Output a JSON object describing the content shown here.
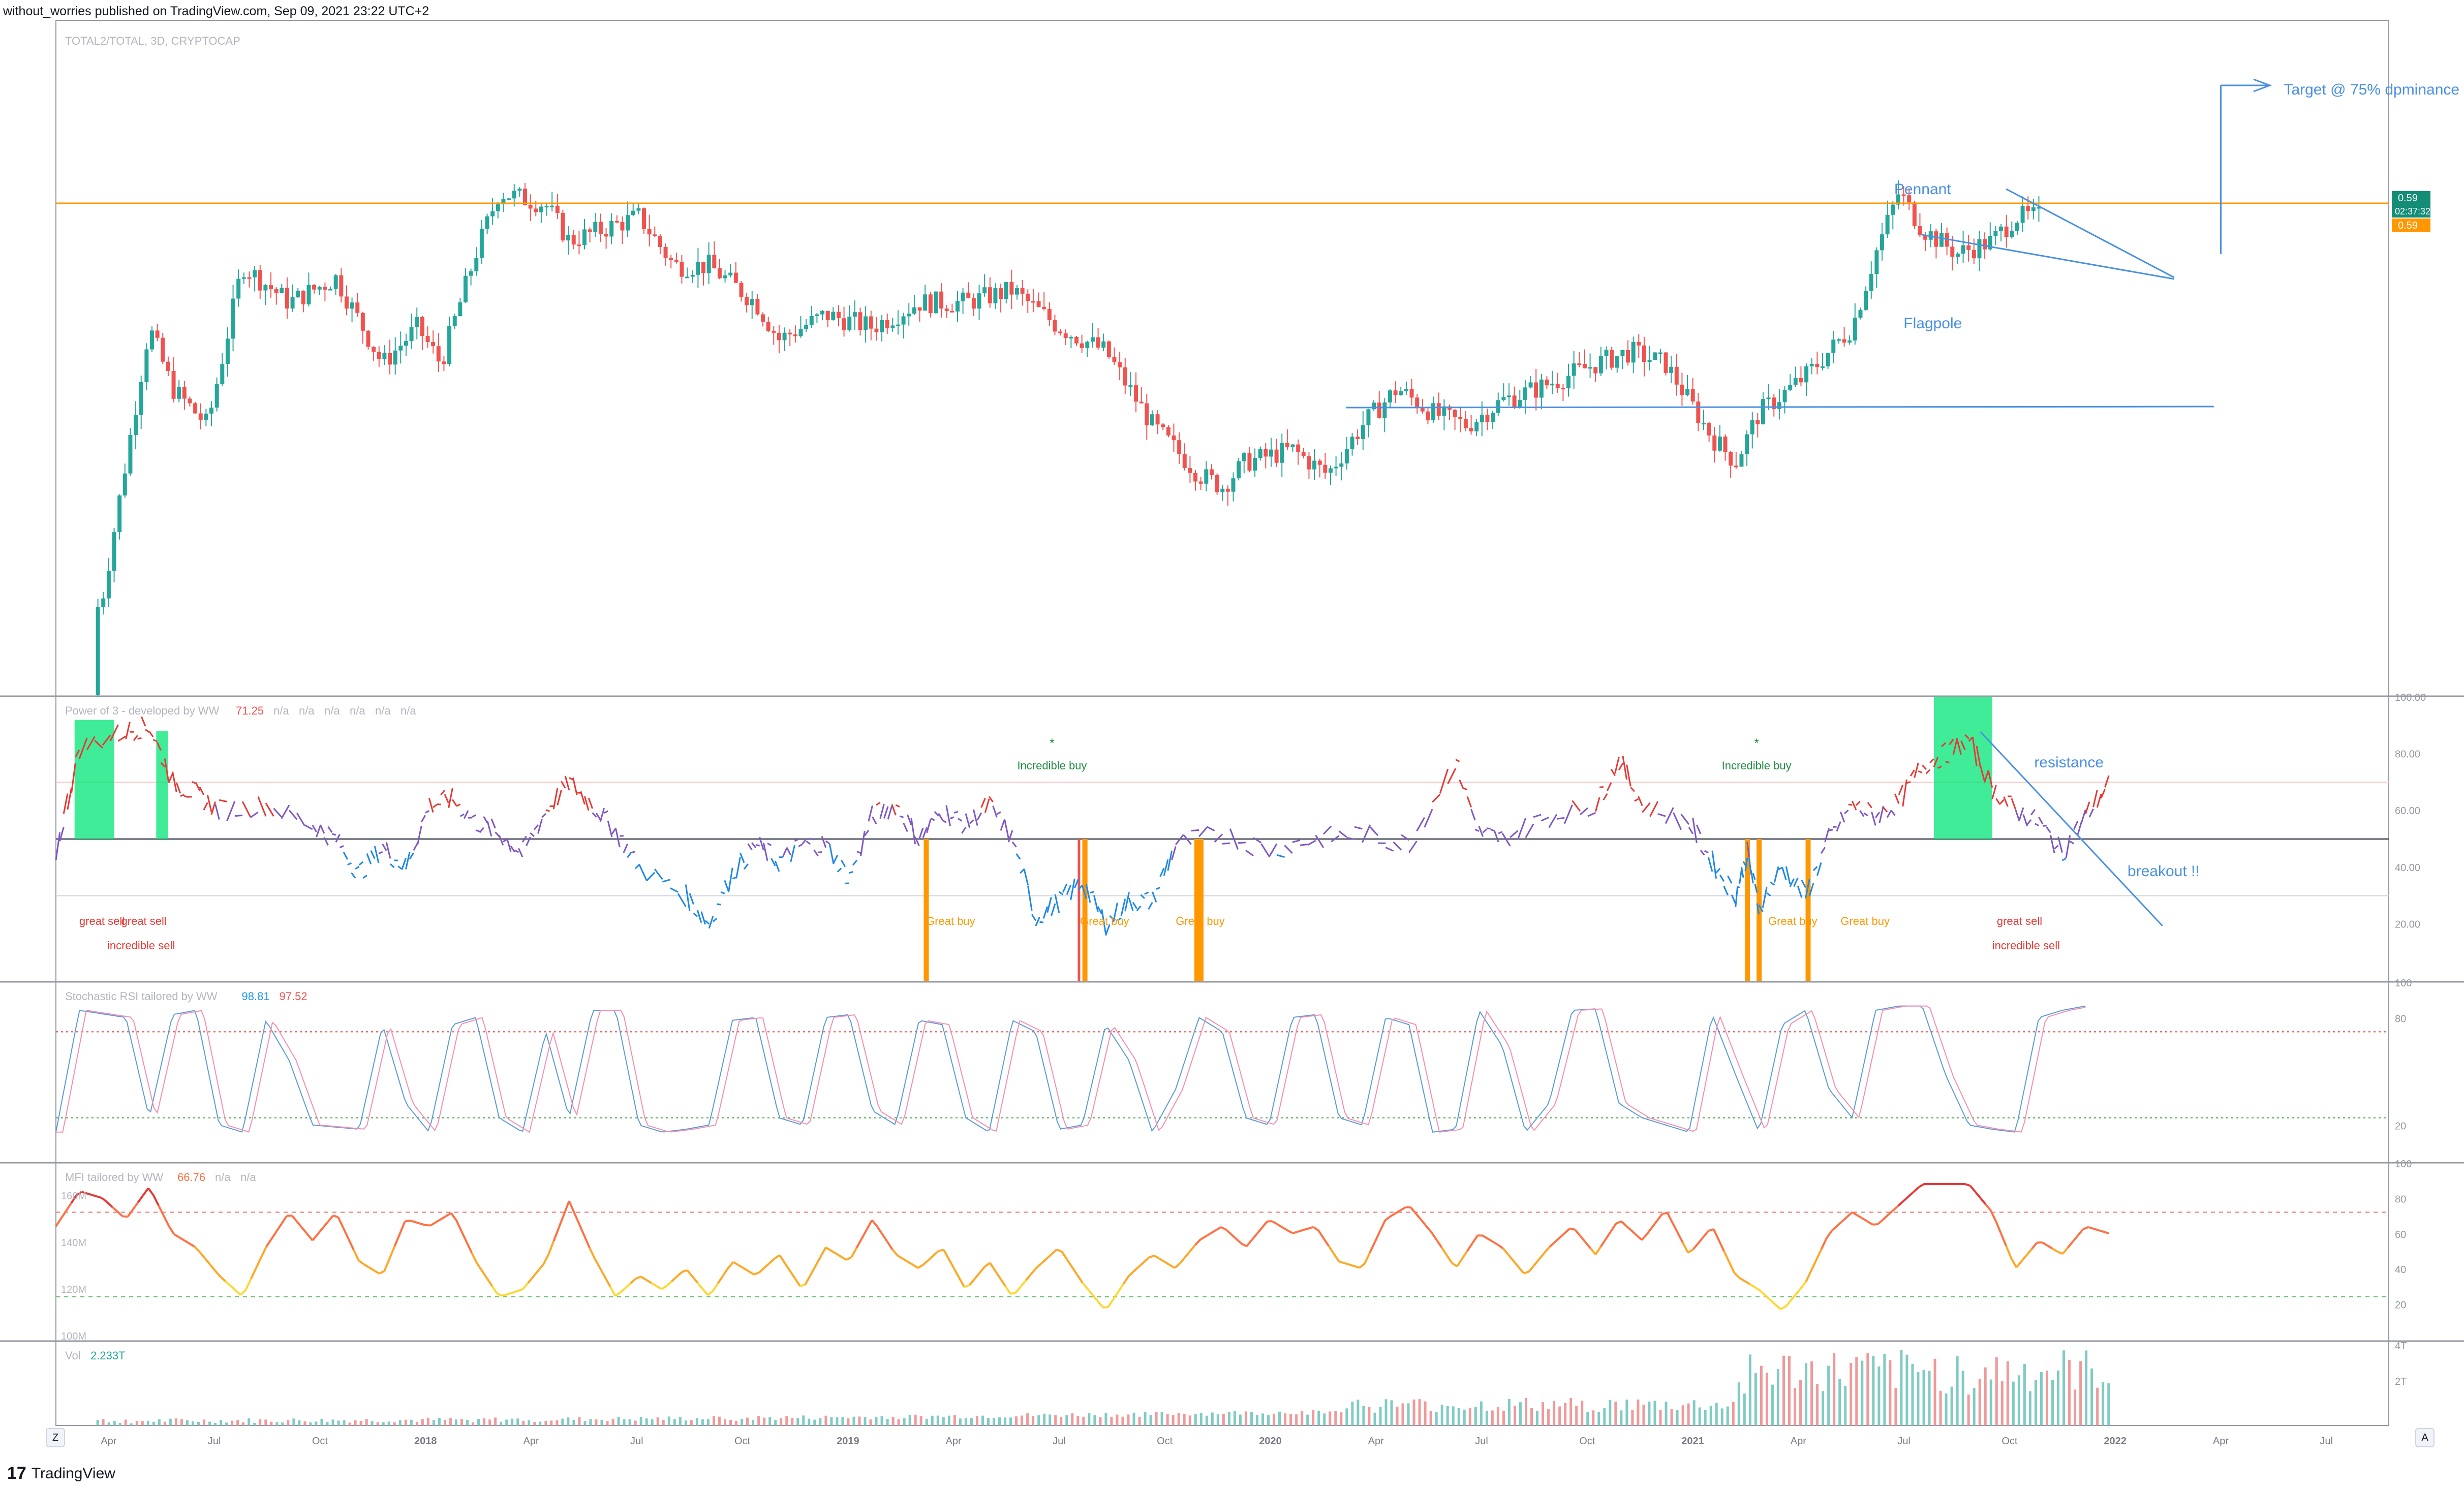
{
  "header": {
    "published": "without_worries published on TradingView.com, Sep 09, 2021 23:22 UTC+2"
  },
  "footer": {
    "brand": "TradingView",
    "brand_mark": "17"
  },
  "buttons": {
    "zoom": "Z",
    "auto": "A"
  },
  "colors": {
    "up": "#26a69a",
    "down": "#ef5350",
    "orange": "#ff9800",
    "blue": "#4a90e2",
    "grid": "#f0f3fa",
    "axis": "#787b86",
    "sep": "#9598a1",
    "green_text": "#1e8e3e",
    "red_text": "#e53935"
  },
  "chart_data": [
    {
      "type": "candlestick",
      "title": "TOTAL2/TOTAL, 3D, CRYPTOCAP",
      "x_labels": [
        "Apr",
        "Jul",
        "Oct",
        "2018",
        "Apr",
        "Jul",
        "Oct",
        "2019",
        "Apr",
        "Jul",
        "Oct",
        "2020",
        "Apr",
        "Jul",
        "Oct",
        "2021",
        "Apr",
        "Jul",
        "Oct",
        "2022",
        "Apr",
        "Jul"
      ],
      "price_label": "0.59",
      "countdown": "02:37:32",
      "last_label": "0.59",
      "ylim": [
        0.2,
        0.75
      ],
      "close_path": [
        [
          0.0,
          0.2
        ],
        [
          0.02,
          0.28
        ],
        [
          0.04,
          0.5
        ],
        [
          0.05,
          0.45
        ],
        [
          0.065,
          0.42
        ],
        [
          0.08,
          0.55
        ],
        [
          0.1,
          0.52
        ],
        [
          0.12,
          0.54
        ],
        [
          0.14,
          0.47
        ],
        [
          0.155,
          0.5
        ],
        [
          0.165,
          0.47
        ],
        [
          0.18,
          0.56
        ],
        [
          0.19,
          0.61
        ],
        [
          0.21,
          0.6
        ],
        [
          0.22,
          0.57
        ],
        [
          0.25,
          0.59
        ],
        [
          0.265,
          0.55
        ],
        [
          0.28,
          0.55
        ],
        [
          0.3,
          0.52
        ],
        [
          0.31,
          0.49
        ],
        [
          0.33,
          0.51
        ],
        [
          0.35,
          0.5
        ],
        [
          0.37,
          0.52
        ],
        [
          0.39,
          0.52
        ],
        [
          0.41,
          0.53
        ],
        [
          0.43,
          0.5
        ],
        [
          0.45,
          0.48
        ],
        [
          0.47,
          0.42
        ],
        [
          0.49,
          0.38
        ],
        [
          0.5,
          0.37
        ],
        [
          0.51,
          0.39
        ],
        [
          0.53,
          0.4
        ],
        [
          0.545,
          0.38
        ],
        [
          0.56,
          0.42
        ],
        [
          0.575,
          0.45
        ],
        [
          0.59,
          0.43
        ],
        [
          0.605,
          0.42
        ],
        [
          0.62,
          0.44
        ],
        [
          0.635,
          0.45
        ],
        [
          0.66,
          0.47
        ],
        [
          0.675,
          0.48
        ],
        [
          0.69,
          0.47
        ],
        [
          0.7,
          0.44
        ],
        [
          0.71,
          0.41
        ],
        [
          0.72,
          0.39
        ],
        [
          0.73,
          0.43
        ],
        [
          0.75,
          0.46
        ],
        [
          0.77,
          0.5
        ],
        [
          0.78,
          0.56
        ],
        [
          0.79,
          0.61
        ],
        [
          0.8,
          0.58
        ],
        [
          0.815,
          0.56
        ],
        [
          0.83,
          0.57
        ],
        [
          0.84,
          0.59
        ],
        [
          0.85,
          0.59
        ]
      ],
      "annotations": {
        "pennant": "Pennant",
        "flagpole": "Flagpole",
        "target": "Target @ 75% dpminance"
      }
    },
    {
      "type": "line",
      "title": "Power of 3 - developed by WW",
      "values_text": [
        "71.25",
        "n/a",
        "n/a",
        "n/a",
        "n/a",
        "n/a",
        "n/a"
      ],
      "y_ticks": [
        "100.00",
        "80.00",
        "60.00",
        "40.00",
        "20.00"
      ],
      "ylim": [
        0,
        100
      ],
      "path": [
        [
          0.0,
          45
        ],
        [
          0.01,
          82
        ],
        [
          0.03,
          88
        ],
        [
          0.04,
          90
        ],
        [
          0.05,
          70
        ],
        [
          0.06,
          66
        ],
        [
          0.07,
          60
        ],
        [
          0.09,
          62
        ],
        [
          0.11,
          55
        ],
        [
          0.12,
          50
        ],
        [
          0.13,
          38
        ],
        [
          0.14,
          47
        ],
        [
          0.15,
          40
        ],
        [
          0.16,
          62
        ],
        [
          0.17,
          64
        ],
        [
          0.18,
          56
        ],
        [
          0.19,
          52
        ],
        [
          0.2,
          45
        ],
        [
          0.21,
          60
        ],
        [
          0.22,
          70
        ],
        [
          0.23,
          62
        ],
        [
          0.24,
          53
        ],
        [
          0.25,
          40
        ],
        [
          0.27,
          30
        ],
        [
          0.28,
          20
        ],
        [
          0.29,
          38
        ],
        [
          0.3,
          48
        ],
        [
          0.31,
          42
        ],
        [
          0.32,
          48
        ],
        [
          0.33,
          48
        ],
        [
          0.34,
          36
        ],
        [
          0.35,
          58
        ],
        [
          0.36,
          62
        ],
        [
          0.37,
          50
        ],
        [
          0.38,
          60
        ],
        [
          0.39,
          55
        ],
        [
          0.4,
          62
        ],
        [
          0.41,
          50
        ],
        [
          0.42,
          22
        ],
        [
          0.43,
          28
        ],
        [
          0.44,
          35
        ],
        [
          0.45,
          20
        ],
        [
          0.46,
          28
        ],
        [
          0.47,
          28
        ],
        [
          0.48,
          48
        ],
        [
          0.5,
          52
        ],
        [
          0.52,
          46
        ],
        [
          0.54,
          50
        ],
        [
          0.56,
          52
        ],
        [
          0.58,
          48
        ],
        [
          0.6,
          78
        ],
        [
          0.61,
          52
        ],
        [
          0.62,
          50
        ],
        [
          0.64,
          58
        ],
        [
          0.66,
          62
        ],
        [
          0.67,
          78
        ],
        [
          0.68,
          62
        ],
        [
          0.7,
          56
        ],
        [
          0.71,
          42
        ],
        [
          0.72,
          30
        ],
        [
          0.725,
          45
        ],
        [
          0.73,
          26
        ],
        [
          0.74,
          40
        ],
        [
          0.75,
          30
        ],
        [
          0.76,
          50
        ],
        [
          0.77,
          62
        ],
        [
          0.78,
          58
        ],
        [
          0.79,
          63
        ],
        [
          0.8,
          76
        ],
        [
          0.81,
          80
        ],
        [
          0.82,
          85
        ],
        [
          0.83,
          68
        ],
        [
          0.84,
          60
        ],
        [
          0.85,
          56
        ],
        [
          0.86,
          45
        ],
        [
          0.87,
          58
        ],
        [
          0.88,
          70
        ]
      ],
      "ref_lines": [
        70,
        50,
        30
      ],
      "annotations": {
        "star": "*",
        "incredible_buy": "Incredible buy",
        "great_sell": "great sell",
        "incredible_sell": "incredible sell",
        "great_buy": "Great buy",
        "resistance": "resistance",
        "breakout": "breakout !!"
      }
    },
    {
      "type": "line",
      "title": "Stochastic RSI tailored by WW",
      "values_text": [
        "98.81",
        "97.52"
      ],
      "y_ticks": [
        "100",
        "80",
        "20"
      ],
      "ylim": [
        0,
        100
      ],
      "ref_lines": [
        80,
        20
      ],
      "cycles": [
        [
          0.0,
          10
        ],
        [
          0.01,
          95
        ],
        [
          0.03,
          90
        ],
        [
          0.04,
          20
        ],
        [
          0.05,
          92
        ],
        [
          0.06,
          95
        ],
        [
          0.07,
          15
        ],
        [
          0.08,
          10
        ],
        [
          0.09,
          88
        ],
        [
          0.1,
          60
        ],
        [
          0.11,
          15
        ],
        [
          0.13,
          12
        ],
        [
          0.14,
          85
        ],
        [
          0.15,
          30
        ],
        [
          0.16,
          10
        ],
        [
          0.17,
          85
        ],
        [
          0.18,
          90
        ],
        [
          0.19,
          20
        ],
        [
          0.2,
          10
        ],
        [
          0.21,
          80
        ],
        [
          0.22,
          20
        ],
        [
          0.23,
          95
        ],
        [
          0.24,
          95
        ],
        [
          0.25,
          15
        ],
        [
          0.26,
          10
        ],
        [
          0.27,
          12
        ],
        [
          0.28,
          15
        ],
        [
          0.29,
          88
        ],
        [
          0.3,
          90
        ],
        [
          0.31,
          20
        ],
        [
          0.32,
          15
        ],
        [
          0.33,
          90
        ],
        [
          0.34,
          92
        ],
        [
          0.35,
          25
        ],
        [
          0.36,
          15
        ],
        [
          0.37,
          88
        ],
        [
          0.38,
          85
        ],
        [
          0.39,
          20
        ],
        [
          0.4,
          10
        ],
        [
          0.41,
          88
        ],
        [
          0.42,
          80
        ],
        [
          0.43,
          12
        ],
        [
          0.44,
          15
        ],
        [
          0.45,
          85
        ],
        [
          0.46,
          60
        ],
        [
          0.47,
          10
        ],
        [
          0.48,
          40
        ],
        [
          0.49,
          90
        ],
        [
          0.5,
          80
        ],
        [
          0.51,
          20
        ],
        [
          0.52,
          15
        ],
        [
          0.53,
          90
        ],
        [
          0.54,
          92
        ],
        [
          0.55,
          20
        ],
        [
          0.56,
          15
        ],
        [
          0.57,
          90
        ],
        [
          0.58,
          85
        ],
        [
          0.59,
          10
        ],
        [
          0.6,
          12
        ],
        [
          0.61,
          95
        ],
        [
          0.62,
          70
        ],
        [
          0.63,
          10
        ],
        [
          0.64,
          30
        ],
        [
          0.65,
          95
        ],
        [
          0.66,
          96
        ],
        [
          0.67,
          30
        ],
        [
          0.68,
          20
        ],
        [
          0.69,
          15
        ],
        [
          0.7,
          10
        ],
        [
          0.71,
          92
        ],
        [
          0.72,
          50
        ],
        [
          0.73,
          10
        ],
        [
          0.74,
          85
        ],
        [
          0.75,
          95
        ],
        [
          0.76,
          40
        ],
        [
          0.77,
          20
        ],
        [
          0.78,
          95
        ],
        [
          0.79,
          98
        ],
        [
          0.8,
          98
        ],
        [
          0.81,
          50
        ],
        [
          0.82,
          15
        ],
        [
          0.83,
          12
        ],
        [
          0.84,
          10
        ],
        [
          0.85,
          90
        ],
        [
          0.86,
          95
        ],
        [
          0.87,
          98
        ]
      ]
    },
    {
      "type": "line",
      "title": "MFI tailored by WW",
      "values_text": [
        "66.76",
        "n/a",
        "n/a"
      ],
      "y_ticks": [
        "100",
        "80",
        "60",
        "40",
        "20"
      ],
      "left_ticks": [
        "160M",
        "140M",
        "120M",
        "100M"
      ],
      "ylim": [
        0,
        100
      ],
      "ref_lines": [
        80,
        20
      ],
      "path": [
        [
          0.0,
          70
        ],
        [
          0.01,
          95
        ],
        [
          0.02,
          90
        ],
        [
          0.03,
          75
        ],
        [
          0.04,
          98
        ],
        [
          0.05,
          65
        ],
        [
          0.06,
          55
        ],
        [
          0.07,
          35
        ],
        [
          0.08,
          20
        ],
        [
          0.09,
          55
        ],
        [
          0.1,
          80
        ],
        [
          0.11,
          60
        ],
        [
          0.12,
          80
        ],
        [
          0.13,
          45
        ],
        [
          0.14,
          35
        ],
        [
          0.15,
          75
        ],
        [
          0.16,
          70
        ],
        [
          0.17,
          80
        ],
        [
          0.18,
          45
        ],
        [
          0.19,
          20
        ],
        [
          0.2,
          25
        ],
        [
          0.21,
          45
        ],
        [
          0.22,
          88
        ],
        [
          0.23,
          50
        ],
        [
          0.24,
          20
        ],
        [
          0.25,
          35
        ],
        [
          0.26,
          25
        ],
        [
          0.27,
          40
        ],
        [
          0.28,
          20
        ],
        [
          0.29,
          45
        ],
        [
          0.3,
          35
        ],
        [
          0.31,
          50
        ],
        [
          0.32,
          25
        ],
        [
          0.33,
          55
        ],
        [
          0.34,
          45
        ],
        [
          0.35,
          75
        ],
        [
          0.36,
          50
        ],
        [
          0.37,
          40
        ],
        [
          0.38,
          55
        ],
        [
          0.39,
          25
        ],
        [
          0.4,
          45
        ],
        [
          0.41,
          20
        ],
        [
          0.42,
          40
        ],
        [
          0.43,
          55
        ],
        [
          0.44,
          30
        ],
        [
          0.45,
          10
        ],
        [
          0.46,
          35
        ],
        [
          0.47,
          50
        ],
        [
          0.48,
          40
        ],
        [
          0.49,
          60
        ],
        [
          0.5,
          70
        ],
        [
          0.51,
          55
        ],
        [
          0.52,
          75
        ],
        [
          0.53,
          65
        ],
        [
          0.54,
          70
        ],
        [
          0.55,
          45
        ],
        [
          0.56,
          40
        ],
        [
          0.57,
          75
        ],
        [
          0.58,
          85
        ],
        [
          0.59,
          65
        ],
        [
          0.6,
          40
        ],
        [
          0.61,
          65
        ],
        [
          0.62,
          55
        ],
        [
          0.63,
          35
        ],
        [
          0.64,
          55
        ],
        [
          0.65,
          70
        ],
        [
          0.66,
          50
        ],
        [
          0.67,
          75
        ],
        [
          0.68,
          60
        ],
        [
          0.69,
          82
        ],
        [
          0.7,
          50
        ],
        [
          0.71,
          70
        ],
        [
          0.72,
          35
        ],
        [
          0.73,
          25
        ],
        [
          0.74,
          10
        ],
        [
          0.75,
          30
        ],
        [
          0.76,
          65
        ],
        [
          0.77,
          80
        ],
        [
          0.78,
          70
        ],
        [
          0.79,
          85
        ],
        [
          0.8,
          100
        ],
        [
          0.81,
          100
        ],
        [
          0.82,
          100
        ],
        [
          0.83,
          80
        ],
        [
          0.84,
          40
        ],
        [
          0.85,
          60
        ],
        [
          0.86,
          50
        ],
        [
          0.87,
          70
        ],
        [
          0.88,
          65
        ]
      ]
    },
    {
      "type": "bar",
      "title": "Vol",
      "values_text": [
        "2.233T"
      ],
      "y_ticks": [
        "4T",
        "2T"
      ]
    }
  ]
}
